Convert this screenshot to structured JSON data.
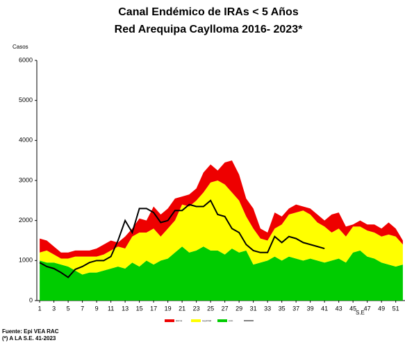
{
  "chart_data": {
    "type": "stacked_area_line",
    "title": "Canal Endémico de IRAs < 5 Años",
    "subtitle": "Red Arequipa Caylloma 2016- 2023*",
    "y_label": "Casos",
    "x_label": "S.E",
    "source": "Fuente: Epi VEA RAC",
    "note": "(*) A LA S.E. 41-2023",
    "x": [
      1,
      2,
      3,
      4,
      5,
      6,
      7,
      8,
      9,
      10,
      11,
      12,
      13,
      14,
      15,
      16,
      17,
      18,
      19,
      20,
      21,
      22,
      23,
      24,
      25,
      26,
      27,
      28,
      29,
      30,
      31,
      32,
      33,
      34,
      35,
      36,
      37,
      38,
      39,
      40,
      41,
      42,
      43,
      44,
      45,
      46,
      47,
      48,
      49,
      50,
      51,
      52
    ],
    "xlim": [
      0.6,
      52.3
    ],
    "xticks": [
      1,
      3,
      5,
      7,
      9,
      11,
      13,
      15,
      17,
      19,
      21,
      23,
      25,
      27,
      29,
      31,
      33,
      35,
      37,
      39,
      41,
      43,
      45,
      47,
      49,
      51
    ],
    "ylim": [
      0,
      6000
    ],
    "yticks": [
      0,
      1000,
      2000,
      3000,
      4000,
      5000,
      6000
    ],
    "series": [
      {
        "name": "éxito",
        "color": "#00cc00",
        "values": [
          1000,
          950,
          950,
          900,
          850,
          750,
          650,
          700,
          700,
          750,
          800,
          850,
          800,
          950,
          850,
          1000,
          900,
          1000,
          1050,
          1200,
          1350,
          1200,
          1250,
          1350,
          1250,
          1250,
          1150,
          1300,
          1200,
          1250,
          900,
          950,
          1000,
          1100,
          1000,
          1100,
          1050,
          1000,
          1050,
          1000,
          950,
          1000,
          1050,
          950,
          1200,
          1250,
          1100,
          1050,
          950,
          900,
          850,
          900
        ]
      },
      {
        "name": "seguridad",
        "color": "#ffff00",
        "values": [
          200,
          300,
          200,
          150,
          200,
          350,
          450,
          400,
          400,
          400,
          450,
          500,
          500,
          650,
          850,
          700,
          900,
          600,
          750,
          800,
          1050,
          1150,
          1250,
          1350,
          1700,
          1750,
          1750,
          1400,
          1300,
          850,
          900,
          600,
          500,
          700,
          900,
          1050,
          1150,
          1250,
          1100,
          950,
          900,
          700,
          750,
          650,
          650,
          600,
          650,
          650,
          650,
          750,
          750,
          500
        ]
      },
      {
        "name": "alarma",
        "color": "#ee0000",
        "values": [
          350,
          250,
          200,
          150,
          150,
          150,
          150,
          150,
          200,
          250,
          250,
          100,
          300,
          200,
          350,
          300,
          550,
          550,
          500,
          550,
          200,
          300,
          300,
          500,
          450,
          250,
          550,
          800,
          650,
          450,
          500,
          250,
          200,
          400,
          200,
          150,
          200,
          100,
          150,
          200,
          150,
          450,
          400,
          250,
          50,
          150,
          150,
          200,
          200,
          300,
          200,
          100
        ]
      },
      {
        "type": "line",
        "color": "#000000",
        "values": [
          950,
          850,
          800,
          700,
          580,
          780,
          850,
          950,
          1000,
          1000,
          1100,
          1500,
          2000,
          1700,
          2300,
          2300,
          2200,
          1950,
          2000,
          2250,
          2250,
          2400,
          2350,
          2350,
          2500,
          2150,
          2100,
          1800,
          1700,
          1400,
          1250,
          1200,
          1200,
          1600,
          1450,
          1600,
          1550,
          1450,
          1400,
          1350,
          1300,
          null,
          null,
          null,
          null,
          null,
          null,
          null,
          null,
          null,
          null,
          null
        ]
      }
    ]
  }
}
